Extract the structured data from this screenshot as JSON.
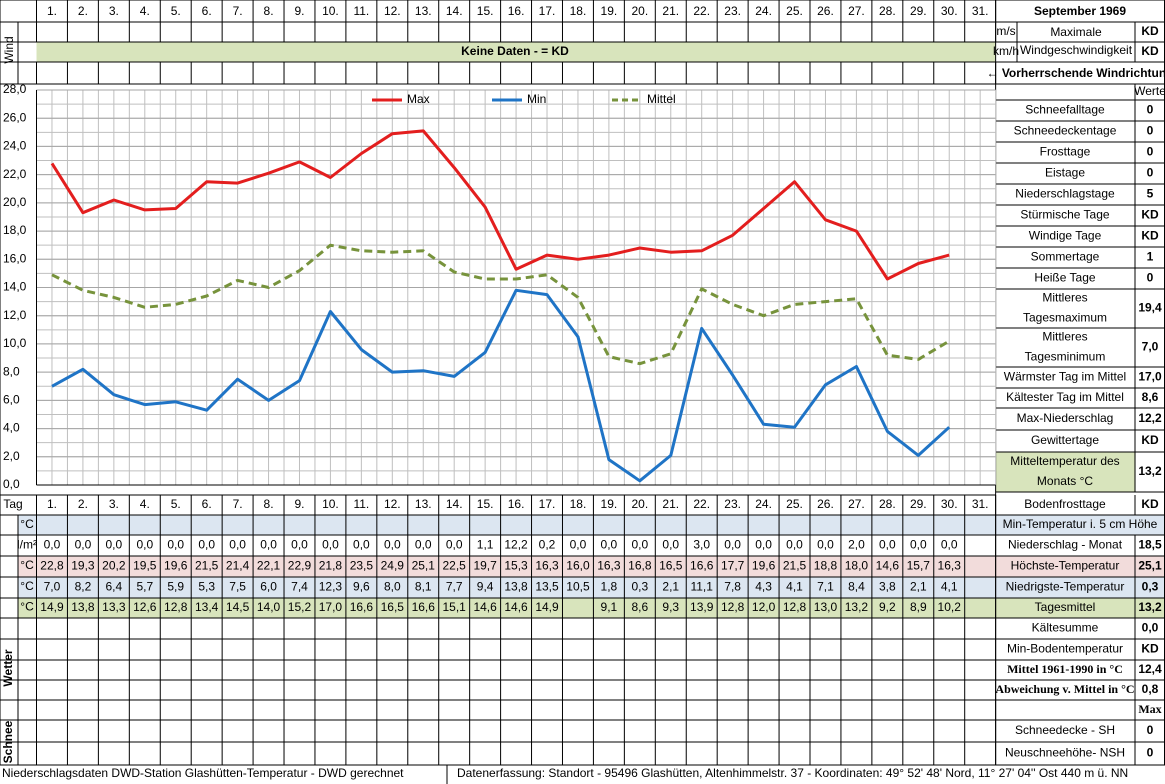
{
  "header": {
    "title": "September 1969"
  },
  "wind": {
    "label": "Wind",
    "units": [
      "m/s",
      "km/h"
    ],
    "max_label": [
      "Maximale",
      "Windgeschwindigkeit"
    ],
    "values": [
      "KD",
      "KD"
    ],
    "banner": "Keine Daten -  = KD",
    "direction": "← Vorherrschende Windrichtung"
  },
  "chart_data": {
    "type": "line",
    "categories": [
      "1.",
      "2.",
      "3.",
      "4.",
      "5.",
      "6.",
      "7.",
      "8.",
      "9.",
      "10.",
      "11.",
      "12.",
      "13.",
      "14.",
      "15.",
      "16.",
      "17.",
      "18.",
      "19.",
      "20.",
      "21.",
      "22.",
      "23.",
      "24.",
      "25.",
      "26.",
      "27.",
      "28.",
      "29.",
      "30.",
      "31."
    ],
    "series": [
      {
        "name": "Max",
        "color": "#e31e1e",
        "dashed": false,
        "values": [
          22.8,
          19.3,
          20.2,
          19.5,
          19.6,
          21.5,
          21.4,
          22.1,
          22.9,
          21.8,
          23.5,
          24.9,
          25.1,
          22.5,
          19.7,
          15.3,
          16.3,
          16.0,
          16.3,
          16.8,
          16.5,
          16.6,
          17.7,
          19.6,
          21.5,
          18.8,
          18.0,
          14.6,
          15.7,
          16.3,
          null
        ],
        "value_labels": [
          "22,8",
          "19,3",
          "20,2",
          "19,5",
          "19,6",
          "21,5",
          "21,4",
          "22,1",
          "22,9",
          "21,8",
          "23,5",
          "24,9",
          "25,1",
          "22,5",
          "19,7",
          "15,3",
          "16,3",
          "16,0",
          "16,3",
          "16,8",
          "16,5",
          "16,6",
          "17,7",
          "19,6",
          "21,5",
          "18,8",
          "18,0",
          "14,6",
          "15,7",
          "16,3",
          null
        ]
      },
      {
        "name": "Min",
        "color": "#1f74c6",
        "dashed": false,
        "values": [
          7.0,
          8.2,
          6.4,
          5.7,
          5.9,
          5.3,
          7.5,
          6.0,
          7.4,
          12.3,
          9.6,
          8.0,
          8.1,
          7.7,
          9.4,
          13.8,
          13.5,
          10.5,
          1.8,
          0.3,
          2.1,
          11.1,
          7.8,
          4.3,
          4.1,
          7.1,
          8.4,
          3.8,
          2.1,
          4.1,
          null
        ],
        "value_labels": [
          "7,0",
          "8,2",
          "6,4",
          "5,7",
          "5,9",
          "5,3",
          "7,5",
          "6,0",
          "7,4",
          "12,3",
          "9,6",
          "8,0",
          "8,1",
          "7,7",
          "9,4",
          "13,8",
          "13,5",
          "10,5",
          "1,8",
          "0,3",
          "2,1",
          "11,1",
          "7,8",
          "4,3",
          "4,1",
          "7,1",
          "8,4",
          "3,8",
          "2,1",
          "4,1",
          null
        ]
      },
      {
        "name": "Mittel",
        "color": "#77933c",
        "dashed": true,
        "values": [
          14.9,
          13.8,
          13.3,
          12.6,
          12.8,
          13.4,
          14.5,
          14.0,
          15.2,
          17.0,
          16.6,
          16.5,
          16.6,
          15.1,
          14.6,
          14.6,
          14.9,
          13.3,
          9.1,
          8.6,
          9.3,
          13.9,
          12.8,
          12.0,
          12.8,
          13.0,
          13.2,
          9.2,
          8.9,
          10.2,
          null
        ],
        "value_labels": [
          "14,9",
          "13,8",
          "13,3",
          "12,6",
          "12,8",
          "13,4",
          "14,5",
          "14,0",
          "15,2",
          "17,0",
          "16,6",
          "16,5",
          "16,6",
          "15,1",
          "14,6",
          "14,6",
          "14,9",
          null,
          "9,1",
          "8,6",
          "9,3",
          "13,9",
          "12,8",
          "12,0",
          "12,8",
          "13,0",
          "13,2",
          "9,2",
          "8,9",
          "10,2",
          null
        ]
      }
    ],
    "ylim": [
      0,
      28
    ],
    "yticks": [
      {
        "value": 0,
        "label": "0,0"
      },
      {
        "value": 2,
        "label": "2,0"
      },
      {
        "value": 4,
        "label": "4,0"
      },
      {
        "value": 6,
        "label": "6,0"
      },
      {
        "value": 8,
        "label": "8,0"
      },
      {
        "value": 10,
        "label": "10,0"
      },
      {
        "value": 12,
        "label": "12,0"
      },
      {
        "value": 14,
        "label": "14,0"
      },
      {
        "value": 16,
        "label": "16,0"
      },
      {
        "value": 18,
        "label": "18,0"
      },
      {
        "value": 20,
        "label": "20,0"
      },
      {
        "value": 22,
        "label": "22,0"
      },
      {
        "value": 24,
        "label": "24,0"
      },
      {
        "value": 26,
        "label": "26,0"
      },
      {
        "value": 28,
        "label": "28,0"
      }
    ],
    "grid": true,
    "legend": "top"
  },
  "stats": {
    "header": "Werte",
    "rows": [
      {
        "label": [
          "Schneefalltage"
        ],
        "value": "0"
      },
      {
        "label": [
          "Schneedeckentage"
        ],
        "value": "0"
      },
      {
        "label": [
          "Frosttage"
        ],
        "value": "0"
      },
      {
        "label": [
          "Eistage"
        ],
        "value": "0"
      },
      {
        "label": [
          "Niederschlagstage"
        ],
        "value": "5"
      },
      {
        "label": [
          "Stürmische Tage"
        ],
        "value": "KD"
      },
      {
        "label": [
          "Windige Tage"
        ],
        "value": "KD"
      },
      {
        "label": [
          "Sommertage"
        ],
        "value": "1"
      },
      {
        "label": [
          "Heiße Tage"
        ],
        "value": "0"
      },
      {
        "label": [
          "Mittleres",
          "Tagesmaximum"
        ],
        "value": "19,4"
      },
      {
        "label": [
          "Mittleres",
          "Tagesminimum"
        ],
        "value": "7,0"
      },
      {
        "label": [
          "Wärmster Tag im Mittel"
        ],
        "value": "17,0"
      },
      {
        "label": [
          "Kältester Tag im Mittel"
        ],
        "value": "8,6"
      },
      {
        "label": [
          "Max-Niederschlag"
        ],
        "value": "12,2"
      },
      {
        "label": [
          "Gewittertage"
        ],
        "value": "KD"
      },
      {
        "label": [
          "Mitteltemperatur des",
          "Monats °C"
        ],
        "value": "13,2"
      }
    ]
  },
  "table": {
    "row_label": "Tag",
    "units": [
      "°C",
      "l/m²",
      "°C",
      "°C",
      "°C"
    ],
    "precipitation": [
      "0,0",
      "0,0",
      "0,0",
      "0,0",
      "0,0",
      "0,0",
      "0,0",
      "0,0",
      "0,0",
      "0,0",
      "0,0",
      "0,0",
      "0,0",
      "0,0",
      "1,1",
      "12,2",
      "0,2",
      "0,0",
      "0,0",
      "0,0",
      "0,0",
      "3,0",
      "0,0",
      "0,0",
      "0,0",
      "0,0",
      "2,0",
      "0,0",
      "0,0",
      "0,0",
      null
    ]
  },
  "summary": [
    {
      "label": "Bodenfrosttage",
      "value": "KD"
    },
    {
      "label": "Min-Temperatur i. 5 cm Höhe"
    },
    {
      "label": "Niederschlag - Monat",
      "value": "18,5"
    },
    {
      "label": "Höchste-Temperatur",
      "value": "25,1"
    },
    {
      "label": "Niedrigste-Temperatur",
      "value": "0,3"
    },
    {
      "label": "Tagesmittel",
      "value": "13,2"
    },
    {
      "label": "Kältesumme",
      "value": "0,0"
    },
    {
      "label": "Min-Bodentemperatur",
      "value": "KD"
    },
    {
      "label": "Mittel 1961-1990 in °C",
      "value": "12,4"
    },
    {
      "label": "Abweichung v. Mittel in °C",
      "value": "0,8"
    },
    {
      "value": "Max"
    },
    {
      "label": "Schneedecke -   SH",
      "value": "0"
    },
    {
      "label": "Neuschneehöhe- NSH",
      "value": "0"
    }
  ],
  "weather": {
    "label": "Wetter"
  },
  "snow": {
    "label": "Schnee"
  },
  "footer": {
    "left": "Niederschlagsdaten DWD-Station Glashütten-Temperatur -  DWD gerechnet",
    "right": "Datenerfassung:  Standort -  95496  Glashütten, Altenhimmelstr. 37 - Koordinaten:  49° 52' 48' Nord,   11° 27' 04'' Ost   440 m ü. NN"
  }
}
